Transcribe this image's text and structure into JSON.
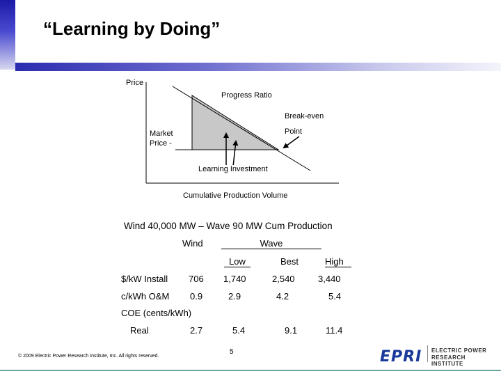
{
  "slide": {
    "title": "“Learning by Doing”"
  },
  "diagram": {
    "price_label": "Price",
    "progress_ratio_label": "Progress Ratio",
    "break_even_label": "Break-even",
    "point_label": "Point",
    "market_price_line1": "Market",
    "market_price_line2": "Price -",
    "learning_investment_label": "Learning Investment",
    "x_axis_label": "Cumulative Production Volume"
  },
  "table": {
    "heading": "Wind 40,000  MW – Wave 90 MW Cum Production",
    "group_wind": "Wind",
    "group_wave": "Wave",
    "sub_low": "Low",
    "sub_best": "Best",
    "sub_high": "High",
    "rows": [
      {
        "label": "$/kW Install",
        "wind": "706",
        "low": "1,740",
        "best": "2,540",
        "high": "3,440"
      },
      {
        "label": "c/kWh O&M",
        "wind": "0.9",
        "low": "2.9",
        "best": "4.2",
        "high": "5.4"
      }
    ],
    "coe_label": "COE (cents/kWh)",
    "real_row": {
      "label": "Real",
      "wind": "2.7",
      "low": "5.4",
      "best": "9.1",
      "high": "11.4"
    }
  },
  "footer": {
    "copyright": "© 2009 Electric Power Research Institute, Inc. All rights reserved.",
    "page_number": "5",
    "logo_mark": "EPRI",
    "logo_line1": "ELECTRIC POWER",
    "logo_line2": "RESEARCH INSTITUTE"
  },
  "colors": {
    "accent_blue": "#2b2bb0",
    "shaded_area": "#c8c8c8",
    "footer_line": "#6aa8a0",
    "logo_blue": "#1a3a9a"
  }
}
